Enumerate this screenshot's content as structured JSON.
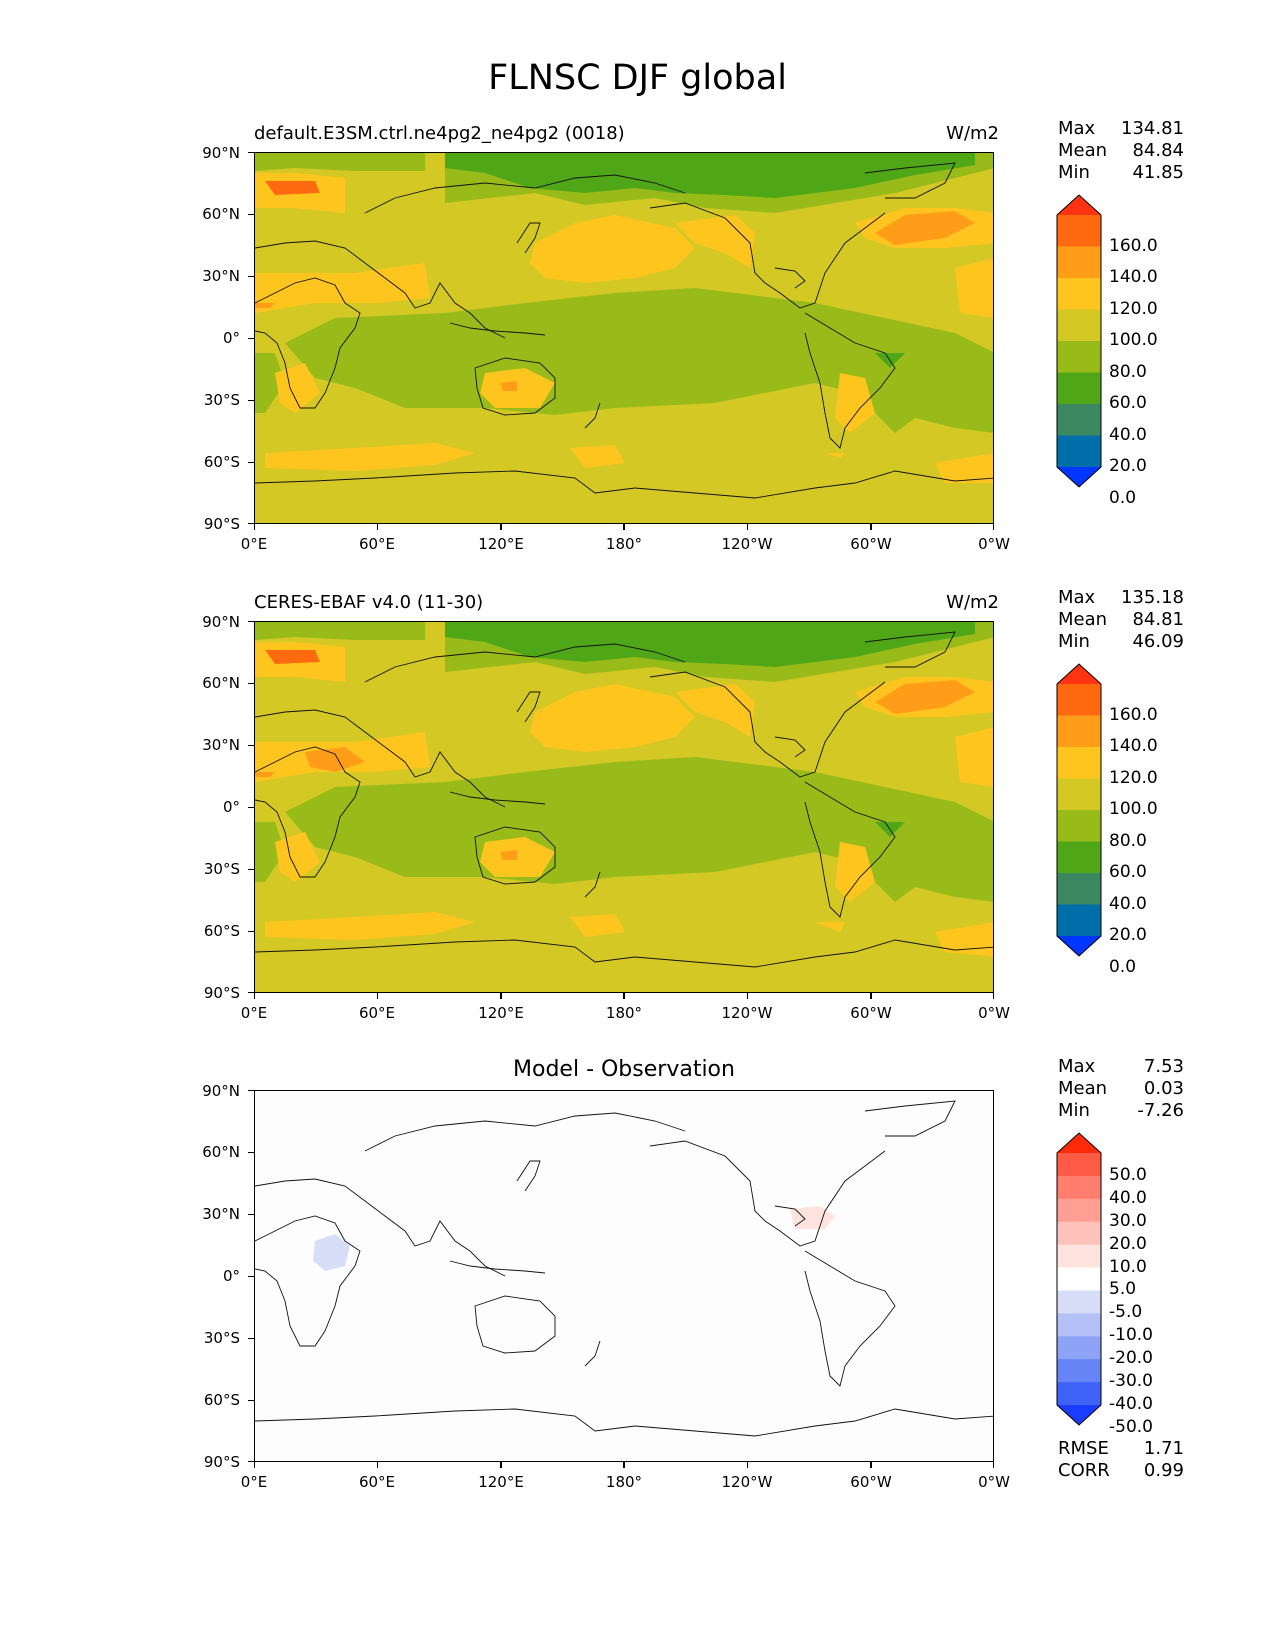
{
  "figure": {
    "title": "FLNSC DJF global"
  },
  "x_ticks": [
    "0°E",
    "60°E",
    "120°E",
    "180°",
    "120°W",
    "60°W",
    "0°W"
  ],
  "y_ticks": [
    "90°N",
    "60°N",
    "30°N",
    "0°",
    "30°S",
    "60°S",
    "90°S"
  ],
  "panels": [
    {
      "title_left": "default.E3SM.ctrl.ne4pg2_ne4pg2 (0018)",
      "title_center": "",
      "units": "W/m2",
      "stats": {
        "max_label": "Max",
        "max": "134.81",
        "mean_label": "Mean",
        "mean": "84.84",
        "min_label": "Min",
        "min": "41.85"
      }
    },
    {
      "title_left": "CERES-EBAF v4.0 (11-30)",
      "title_center": "",
      "units": "W/m2",
      "stats": {
        "max_label": "Max",
        "max": "135.18",
        "mean_label": "Mean",
        "mean": "84.81",
        "min_label": "Min",
        "min": "46.09"
      }
    },
    {
      "title_left": "",
      "title_center": "Model - Observation",
      "units": "",
      "stats": {
        "max_label": "Max",
        "max": "7.53",
        "mean_label": "Mean",
        "mean": "0.03",
        "min_label": "Min",
        "min": "-7.26"
      },
      "metrics": {
        "rmse_label": "RMSE",
        "rmse": "1.71",
        "corr_label": "CORR",
        "corr": "0.99"
      }
    }
  ],
  "colorbar_main": {
    "labels": [
      "160.0",
      "140.0",
      "120.0",
      "100.0",
      "80.0",
      "60.0",
      "40.0",
      "20.0",
      "0.0"
    ],
    "colors": [
      "#ff3311",
      "#ff6a11",
      "#ff9d18",
      "#ffc51f",
      "#d4c825",
      "#98bb1a",
      "#4fa617",
      "#3b8860",
      "#006ea8",
      "#0036ff"
    ]
  },
  "colorbar_diff": {
    "labels": [
      "50.0",
      "40.0",
      "30.0",
      "20.0",
      "10.0",
      "5.0",
      "-5.0",
      "-10.0",
      "-20.0",
      "-30.0",
      "-40.0",
      "-50.0"
    ],
    "colors": [
      "#ff2a0a",
      "#ff5a45",
      "#ff7e6e",
      "#ff9f93",
      "#ffc2ba",
      "#ffe3de",
      "#ffffff",
      "#d8def8",
      "#b3c1f7",
      "#8da3f6",
      "#6684f6",
      "#3f63f7",
      "#1a3cff"
    ]
  },
  "colors": {
    "green_dark": "#4fa617",
    "green_mid": "#98bb1a",
    "olive": "#d4c825",
    "yellow_orange": "#ffc51f",
    "orange": "#ff9d18",
    "dark_orange": "#ff6a11"
  }
}
